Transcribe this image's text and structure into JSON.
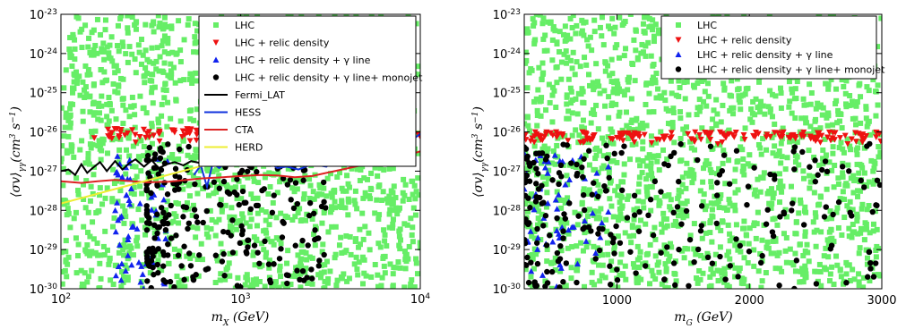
{
  "chart_data": [
    {
      "type": "scatter",
      "xscale": "log",
      "yscale": "log",
      "xlim": [
        100,
        10000
      ],
      "ylim": [
        1e-30,
        1e-23
      ],
      "xlabel": "m_X (GeV)",
      "ylabel": "⟨σv⟩_γγ (cm^3 s^-1)",
      "x_ticks": [
        {
          "base": "10",
          "exp": "2"
        },
        {
          "base": "10",
          "exp": "3"
        },
        {
          "base": "10",
          "exp": "4"
        }
      ],
      "x_tick_values": [
        100,
        1000,
        10000
      ],
      "y_ticks": [
        {
          "base": "10",
          "exp": "-30"
        },
        {
          "base": "10",
          "exp": "-29"
        },
        {
          "base": "10",
          "exp": "-28"
        },
        {
          "base": "10",
          "exp": "-27"
        },
        {
          "base": "10",
          "exp": "-26"
        },
        {
          "base": "10",
          "exp": "-25"
        },
        {
          "base": "10",
          "exp": "-24"
        },
        {
          "base": "10",
          "exp": "-23"
        }
      ],
      "y_tick_values": [
        1e-30,
        1e-29,
        1e-28,
        1e-27,
        1e-26,
        1e-25,
        1e-24,
        1e-23
      ],
      "legend_position": "top-right",
      "legend": [
        "LHC",
        "LHC + relic density",
        "LHC + relic density + γ line",
        "LHC + relic density + γ line+ monojet",
        "Fermi_LAT",
        "HESS",
        "CTA",
        "HERD"
      ],
      "series": [
        {
          "name": "LHC",
          "marker": "square",
          "color": "#66ee66",
          "region": {
            "x": [
              100,
              10000
            ],
            "y": [
              1e-30,
              1e-23
            ]
          }
        },
        {
          "name": "LHC + relic density",
          "marker": "triangle-down",
          "color": "#ee1111",
          "region": {
            "x": [
              150,
              10000
            ],
            "y": [
              2e-27,
              1.2e-26
            ]
          }
        },
        {
          "name": "LHC + relic density + γ line",
          "marker": "triangle-up",
          "color": "#1122ee",
          "region": {
            "x": [
              200,
              400
            ],
            "y": [
              1e-30,
              3e-27
            ]
          }
        },
        {
          "name": "LHC + relic density + γ line+ monojet",
          "marker": "circle",
          "color": "#000000",
          "region": {
            "x": [
              300,
              3000
            ],
            "y": [
              1e-30,
              5e-27
            ]
          }
        },
        {
          "name": "Fermi_LAT",
          "type": "line",
          "color": "#000000",
          "x": [
            100,
            110,
            120,
            130,
            140,
            150,
            165,
            180,
            200,
            220,
            240,
            260,
            290,
            320,
            350,
            390,
            430,
            480,
            530,
            600
          ],
          "y": [
            1e-27,
            1.1e-27,
            8e-28,
            1.5e-27,
            9e-28,
            1.2e-27,
            1.7e-27,
            1e-27,
            1.8e-27,
            1.1e-27,
            1.6e-27,
            2e-27,
            1.3e-27,
            1.9e-27,
            1.2e-27,
            1.5e-27,
            1.7e-27,
            1.4e-27,
            1.8e-27,
            1.6e-27
          ]
        },
        {
          "name": "HESS",
          "type": "line",
          "color": "#1133dd",
          "x": [
            550,
            600,
            650,
            700,
            760,
            820,
            900,
            1000,
            1100,
            1250,
            1400,
            1600,
            1800,
            2100,
            2500,
            3000,
            3500,
            4200,
            5000,
            5800,
            6500,
            7500,
            8500,
            10000
          ],
          "y": [
            8e-28,
            1.4e-27,
            4e-28,
            1.6e-27,
            1.2e-27,
            1.6e-27,
            2.4e-27,
            2.3e-27,
            2.4e-27,
            2.2e-27,
            1.9e-27,
            1.2e-27,
            1.3e-27,
            1.1e-27,
            1.5e-27,
            1.3e-27,
            2.4e-27,
            3.8e-27,
            7e-27,
            5e-27,
            1e-26,
            6e-27,
            5e-27,
            9e-27
          ]
        },
        {
          "name": "CTA",
          "type": "line",
          "color": "#dd2222",
          "x": [
            100,
            130,
            160,
            200,
            250,
            300,
            400,
            500,
            600,
            800,
            1000,
            1300,
            1600,
            2000,
            2500,
            3000,
            4000,
            5000,
            6000,
            8000,
            10000
          ],
          "y": [
            5.5e-28,
            5e-28,
            5.5e-28,
            6e-28,
            5.5e-28,
            5.2e-28,
            5.4e-28,
            6e-28,
            6.5e-28,
            7e-28,
            7.5e-28,
            8e-28,
            7.8e-28,
            7e-28,
            7.5e-28,
            9e-28,
            1.2e-27,
            1.5e-27,
            1.8e-27,
            2.4e-27,
            3.2e-27
          ]
        },
        {
          "name": "HERD",
          "type": "line",
          "color": "#eeee33",
          "x": [
            100,
            1000
          ],
          "y": [
            1.5e-28,
            2.5e-27
          ]
        }
      ]
    },
    {
      "type": "scatter",
      "xscale": "linear",
      "yscale": "log",
      "xlim": [
        300,
        3000
      ],
      "ylim": [
        1e-30,
        1e-23
      ],
      "xlabel": "m_G (GeV)",
      "ylabel": "⟨σv⟩_γγ (cm^3 s^-1)",
      "x_tick_values": [
        1000,
        2000,
        3000
      ],
      "x_tick_labels": [
        "1000",
        "2000",
        "3000"
      ],
      "y_ticks": [
        {
          "base": "10",
          "exp": "-30"
        },
        {
          "base": "10",
          "exp": "-29"
        },
        {
          "base": "10",
          "exp": "-28"
        },
        {
          "base": "10",
          "exp": "-27"
        },
        {
          "base": "10",
          "exp": "-26"
        },
        {
          "base": "10",
          "exp": "-25"
        },
        {
          "base": "10",
          "exp": "-24"
        },
        {
          "base": "10",
          "exp": "-23"
        }
      ],
      "y_tick_values": [
        1e-30,
        1e-29,
        1e-28,
        1e-27,
        1e-26,
        1e-25,
        1e-24,
        1e-23
      ],
      "legend_position": "top-right",
      "legend": [
        "LHC",
        "LHC + relic density",
        "LHC + relic density + γ line",
        "LHC + relic density + γ line+ monojet"
      ],
      "series": [
        {
          "name": "LHC",
          "marker": "square",
          "color": "#66ee66",
          "region": {
            "x": [
              300,
              3000
            ],
            "y": [
              1e-30,
              1e-23
            ]
          }
        },
        {
          "name": "LHC + relic density",
          "marker": "triangle-down",
          "color": "#ee1111",
          "region": {
            "x": [
              300,
              3000
            ],
            "y": [
              2e-27,
              1e-26
            ]
          }
        },
        {
          "name": "LHC + relic density + γ line",
          "marker": "triangle-up",
          "color": "#1122ee",
          "region": {
            "x": [
              300,
              950
            ],
            "y": [
              1e-30,
              3e-27
            ]
          }
        },
        {
          "name": "LHC + relic density + γ line+ monojet",
          "marker": "circle",
          "color": "#000000",
          "region": {
            "x": [
              300,
              3000
            ],
            "y": [
              1e-30,
              5e-27
            ]
          }
        }
      ]
    }
  ]
}
